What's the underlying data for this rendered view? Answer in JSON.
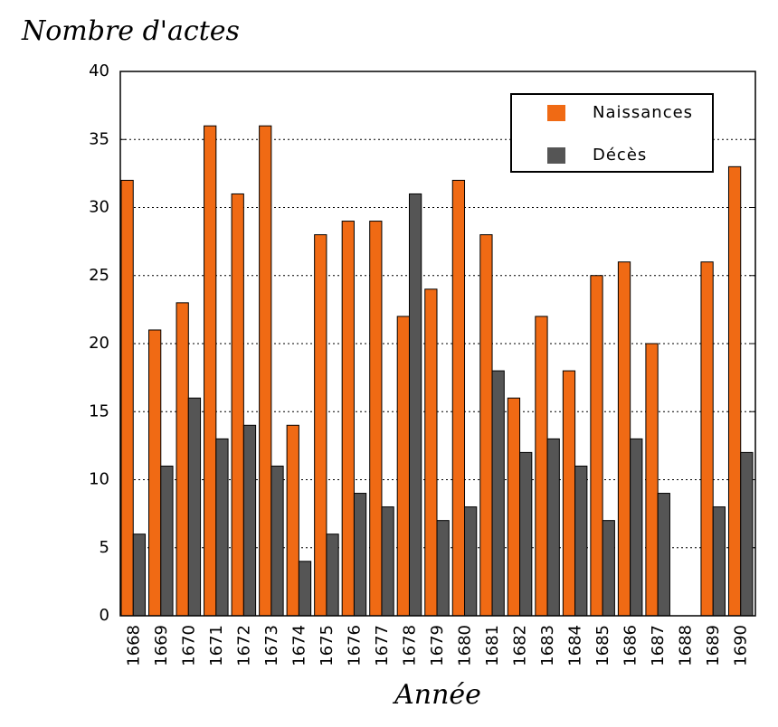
{
  "chart_data": {
    "type": "bar",
    "title": "Nombre d'actes",
    "x_label": "Année",
    "categories": [
      "1668",
      "1669",
      "1670",
      "1671",
      "1672",
      "1673",
      "1674",
      "1675",
      "1676",
      "1677",
      "1678",
      "1679",
      "1680",
      "1681",
      "1682",
      "1683",
      "1684",
      "1685",
      "1686",
      "1687",
      "1688",
      "1689",
      "1690"
    ],
    "series": [
      {
        "name": "Naissances",
        "color": "#f06a14",
        "values": [
          32,
          21,
          23,
          36,
          31,
          36,
          14,
          28,
          29,
          29,
          22,
          24,
          32,
          28,
          16,
          22,
          18,
          25,
          26,
          20,
          0,
          26,
          33
        ]
      },
      {
        "name": "Décès",
        "color": "#555555",
        "values": [
          6,
          11,
          16,
          13,
          14,
          11,
          4,
          6,
          9,
          8,
          31,
          7,
          8,
          18,
          12,
          13,
          11,
          7,
          13,
          9,
          0,
          8,
          12
        ]
      }
    ],
    "ylim": [
      0,
      40
    ],
    "yticks": [
      0,
      5,
      10,
      15,
      20,
      25,
      30,
      35,
      40
    ],
    "grid": true,
    "legend": "top-right"
  }
}
